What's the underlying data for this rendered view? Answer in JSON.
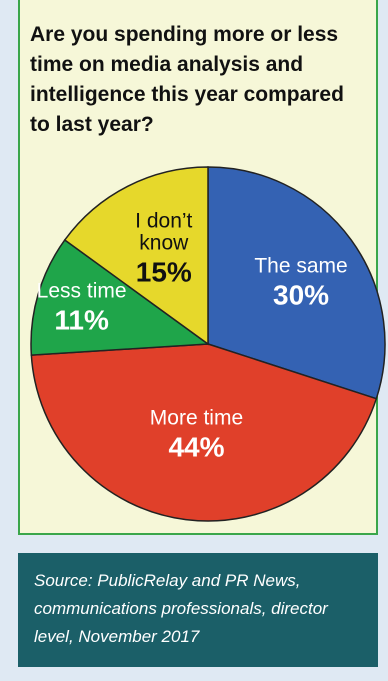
{
  "title": "Are you spending more or less time on media analysis and intelligence this year compared to last year?",
  "chart_data": {
    "type": "pie",
    "title": "Are you spending more or less time on media analysis and intelligence this year compared to last year?",
    "slices": [
      {
        "label": "The same",
        "label_lines": [
          "The same"
        ],
        "value": 30,
        "value_label": "30%",
        "color": "#3462b3",
        "text_color": "#ffffff"
      },
      {
        "label": "More time",
        "label_lines": [
          "More time"
        ],
        "value": 44,
        "value_label": "44%",
        "color": "#e0402a",
        "text_color": "#ffffff"
      },
      {
        "label": "Less time",
        "label_lines": [
          "Less time"
        ],
        "value": 11,
        "value_label": "11%",
        "color": "#1fa54a",
        "text_color": "#ffffff"
      },
      {
        "label": "I don't know",
        "label_lines": [
          "I don’t",
          "know"
        ],
        "value": 15,
        "value_label": "15%",
        "color": "#e6d82b",
        "text_color": "#111111"
      }
    ]
  },
  "source": "Source: PublicRelay and PR News, communications professionals, director level, November 2017"
}
